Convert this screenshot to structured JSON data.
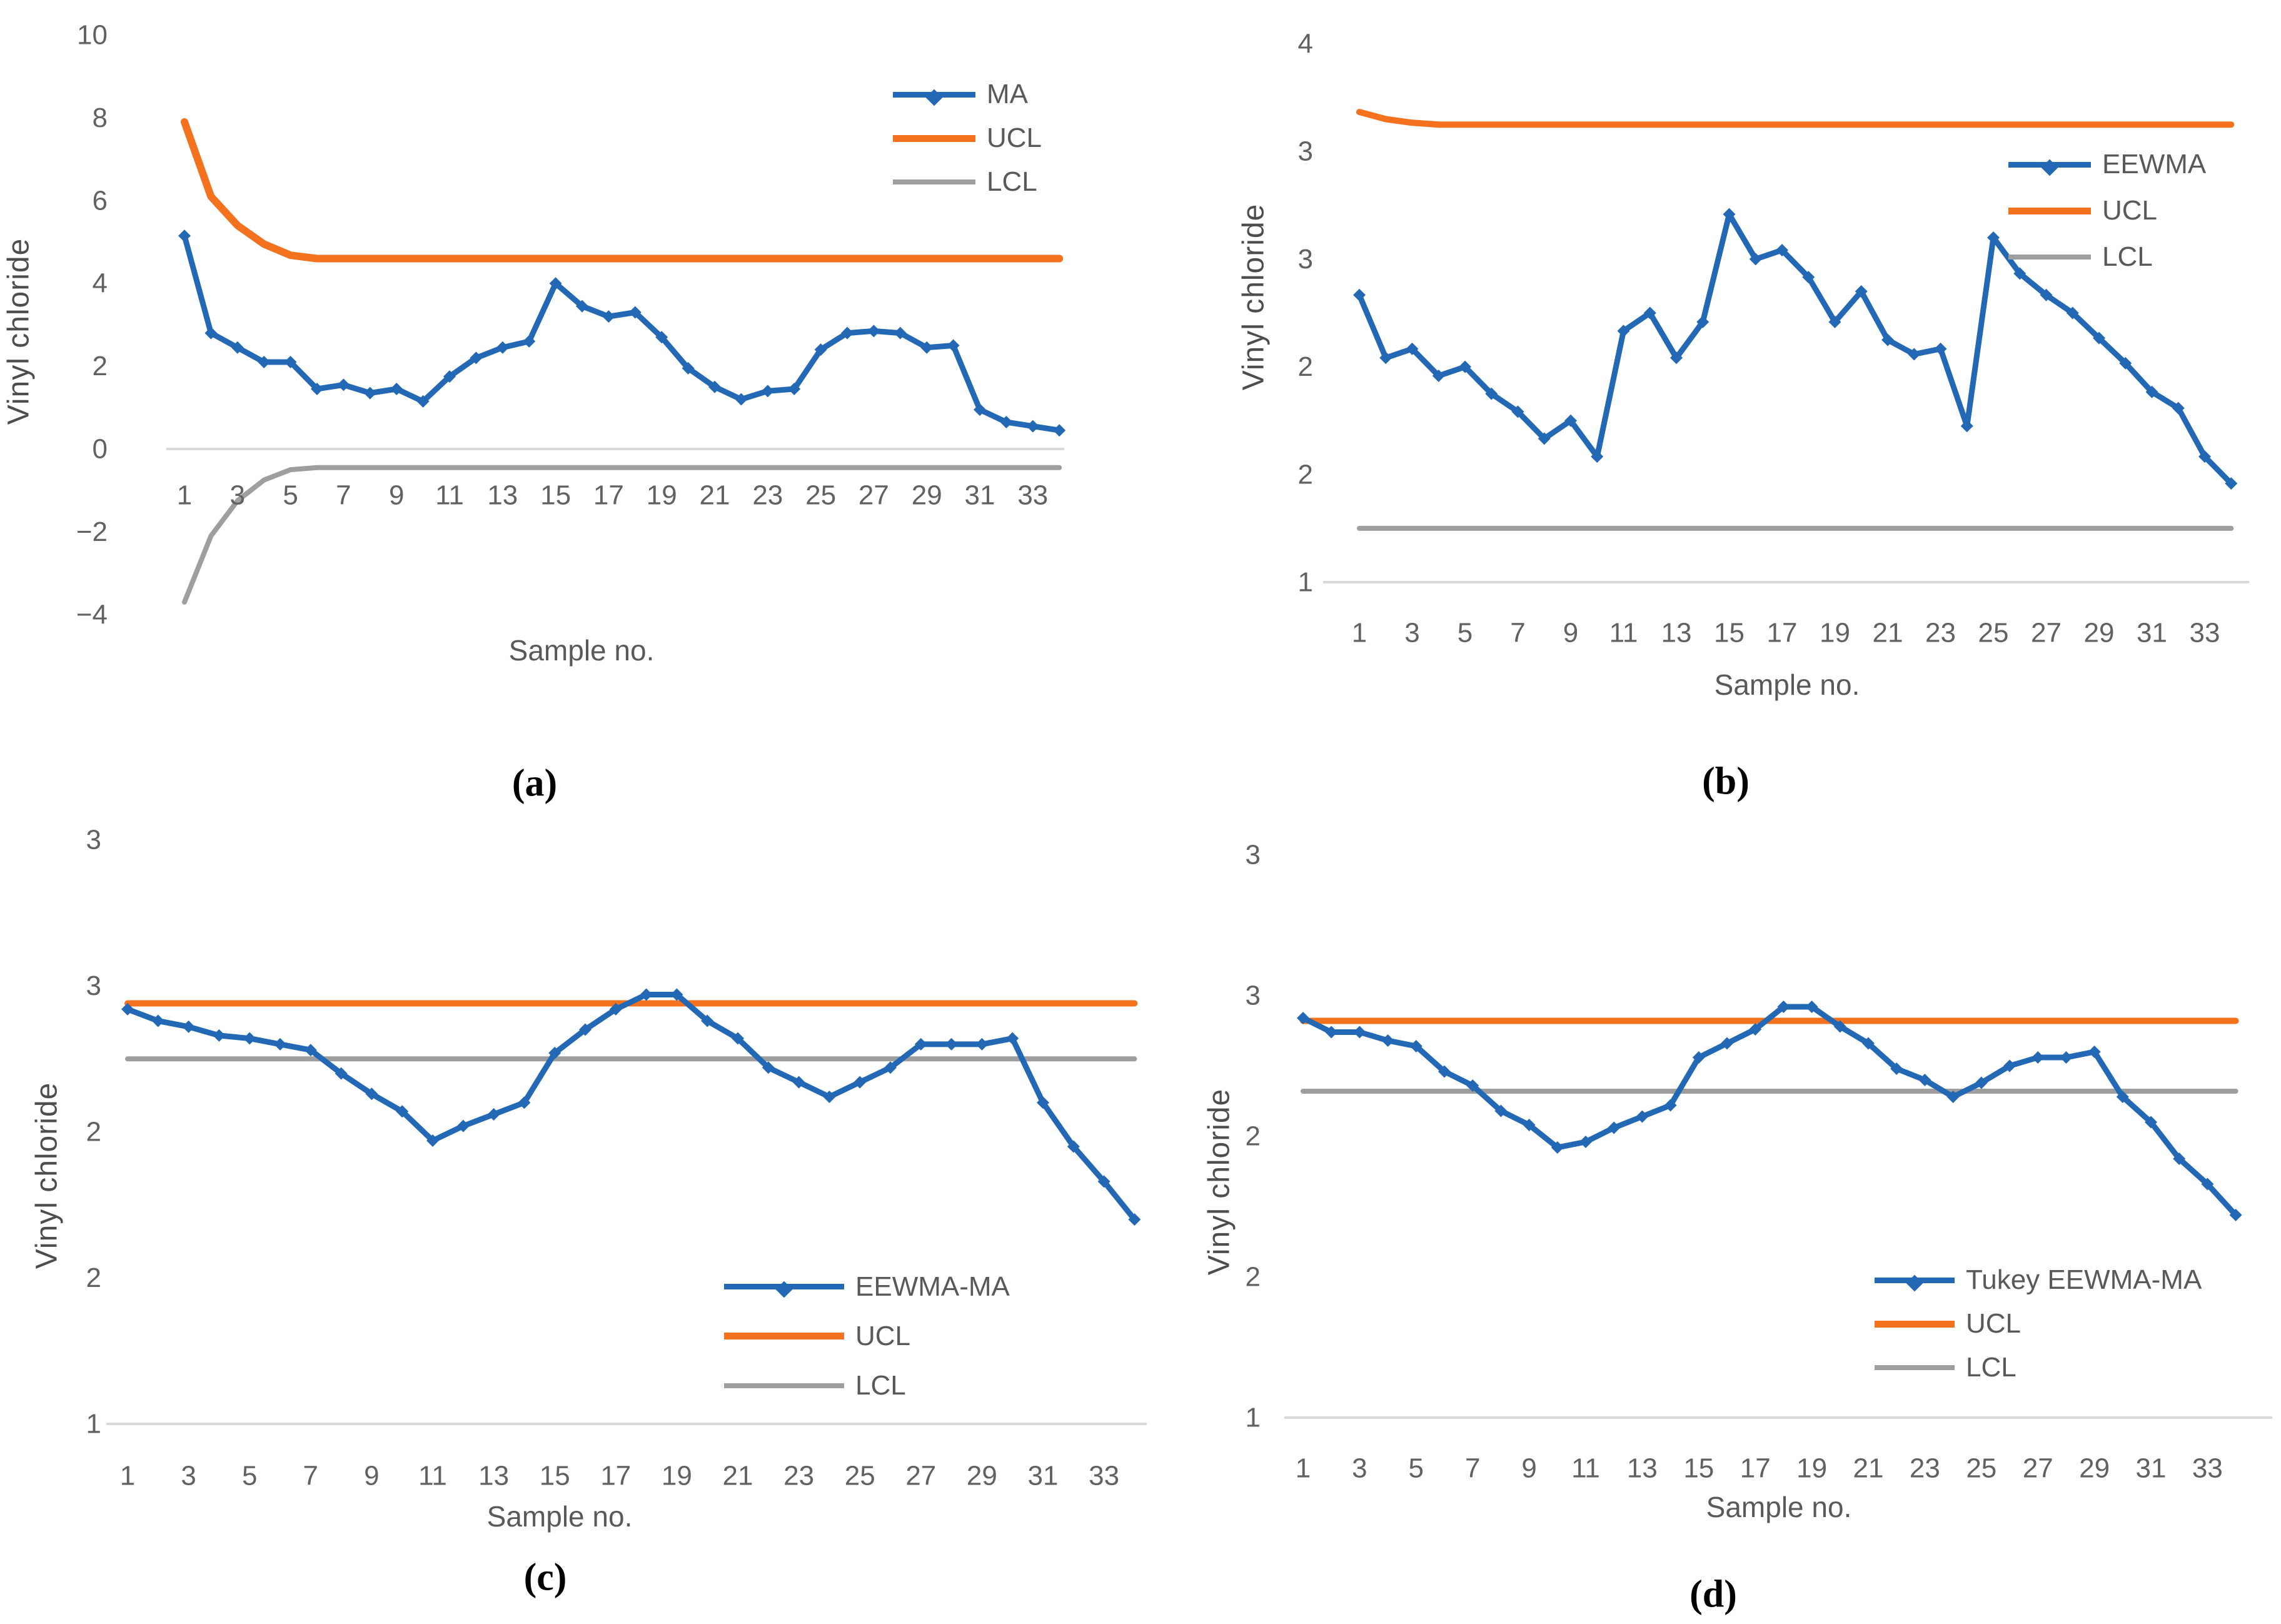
{
  "figure": {
    "type": "control-chart-figure",
    "panel_count": 4,
    "background": "#ffffff"
  },
  "colors": {
    "blue": "#2268b5",
    "orange": "#f4711e",
    "gray": "#9e9e9e",
    "axis_light": "#d8d8d8",
    "tick_text": "#616161",
    "caption_text": "#000000"
  },
  "chart_data": [
    {
      "id": "a",
      "type": "line",
      "caption": "(a)",
      "ylabel": "Vinyl chloride",
      "xlabel": "Sample no.",
      "ylim": [
        -4,
        10
      ],
      "y_major_unit": 2,
      "ytick_values": [
        10,
        8,
        6,
        4,
        2,
        0,
        -2,
        -4
      ],
      "ytick_labels": [
        "10",
        "8",
        "6",
        "4",
        "2",
        "0",
        "−2",
        "−4"
      ],
      "xtick_labels": [
        1,
        3,
        5,
        7,
        9,
        11,
        13,
        15,
        17,
        19,
        21,
        23,
        25,
        27,
        29,
        31,
        33
      ],
      "n_samples": 34,
      "legend_position": "top-right-inside",
      "series": [
        {
          "name": "MA",
          "color_key": "blue",
          "marker": "diamond",
          "values": [
            5.15,
            2.8,
            2.45,
            2.1,
            2.1,
            1.45,
            1.55,
            1.35,
            1.45,
            1.15,
            1.75,
            2.2,
            2.45,
            2.6,
            4.0,
            3.45,
            3.2,
            3.3,
            2.7,
            1.95,
            1.5,
            1.2,
            1.4,
            1.45,
            2.4,
            2.8,
            2.85,
            2.8,
            2.45,
            2.5,
            0.95,
            0.65,
            0.55,
            0.45
          ]
        },
        {
          "name": "UCL",
          "color_key": "orange",
          "marker": "none",
          "values": [
            7.9,
            6.1,
            5.4,
            4.95,
            4.68,
            4.6,
            4.6,
            4.6,
            4.6,
            4.6,
            4.6,
            4.6,
            4.6,
            4.6,
            4.6,
            4.6,
            4.6,
            4.6,
            4.6,
            4.6,
            4.6,
            4.6,
            4.6,
            4.6,
            4.6,
            4.6,
            4.6,
            4.6,
            4.6,
            4.6,
            4.6,
            4.6,
            4.6,
            4.6
          ]
        },
        {
          "name": "LCL",
          "color_key": "gray",
          "marker": "none",
          "values": [
            -3.7,
            -2.1,
            -1.25,
            -0.75,
            -0.5,
            -0.45,
            -0.45,
            -0.45,
            -0.45,
            -0.45,
            -0.45,
            -0.45,
            -0.45,
            -0.45,
            -0.45,
            -0.45,
            -0.45,
            -0.45,
            -0.45,
            -0.45,
            -0.45,
            -0.45,
            -0.45,
            -0.45,
            -0.45,
            -0.45,
            -0.45,
            -0.45,
            -0.45,
            -0.45,
            -0.45,
            -0.45,
            -0.45,
            -0.45
          ]
        }
      ]
    },
    {
      "id": "b",
      "type": "line",
      "caption": "(b)",
      "ylabel": "Vinyl chloride",
      "xlabel": "Sample no.",
      "ylim": [
        1,
        4
      ],
      "y_major_unit": 0.6,
      "ytick_values": [
        4,
        3.4,
        2.8,
        2.2,
        1.6,
        1
      ],
      "ytick_labels": [
        "4",
        "3",
        "3",
        "2",
        "2",
        "1"
      ],
      "xtick_labels": [
        1,
        3,
        5,
        7,
        9,
        11,
        13,
        15,
        17,
        19,
        21,
        23,
        25,
        27,
        29,
        31,
        33
      ],
      "n_samples": 34,
      "legend_position": "top-right-inside",
      "series": [
        {
          "name": "EEWMA",
          "color_key": "blue",
          "marker": "diamond",
          "values": [
            2.6,
            2.25,
            2.3,
            2.15,
            2.2,
            2.05,
            1.95,
            1.8,
            1.9,
            1.7,
            2.4,
            2.5,
            2.25,
            2.45,
            3.05,
            2.8,
            2.85,
            2.7,
            2.45,
            2.62,
            2.35,
            2.27,
            2.3,
            1.87,
            2.92,
            2.72,
            2.6,
            2.5,
            2.36,
            2.22,
            2.06,
            1.97,
            1.7,
            1.55
          ]
        },
        {
          "name": "UCL",
          "color_key": "orange",
          "marker": "none",
          "values": [
            3.62,
            3.58,
            3.56,
            3.55,
            3.55,
            3.55,
            3.55,
            3.55,
            3.55,
            3.55,
            3.55,
            3.55,
            3.55,
            3.55,
            3.55,
            3.55,
            3.55,
            3.55,
            3.55,
            3.55,
            3.55,
            3.55,
            3.55,
            3.55,
            3.55,
            3.55,
            3.55,
            3.55,
            3.55,
            3.55,
            3.55,
            3.55,
            3.55,
            3.55
          ]
        },
        {
          "name": "LCL",
          "color_key": "gray",
          "marker": "none",
          "flat_value": 1.3
        }
      ]
    },
    {
      "id": "c",
      "type": "line",
      "caption": "(c)",
      "ylabel": "Vinyl chloride",
      "xlabel": "Sample no.",
      "ylim": [
        1,
        3
      ],
      "y_major_unit": 0.5,
      "ytick_values": [
        3,
        2.5,
        2,
        1.5,
        1
      ],
      "ytick_labels": [
        "3",
        "3",
        "2",
        "2",
        "1"
      ],
      "xtick_labels": [
        1,
        3,
        5,
        7,
        9,
        11,
        13,
        15,
        17,
        19,
        21,
        23,
        25,
        27,
        29,
        31,
        33
      ],
      "n_samples": 34,
      "legend_position": "bottom-center-inside",
      "series": [
        {
          "name": "EEWMA-MA",
          "color_key": "blue",
          "marker": "diamond",
          "values": [
            2.42,
            2.38,
            2.36,
            2.33,
            2.32,
            2.3,
            2.28,
            2.2,
            2.13,
            2.07,
            1.97,
            2.02,
            2.06,
            2.1,
            2.27,
            2.35,
            2.42,
            2.47,
            2.47,
            2.38,
            2.32,
            2.22,
            2.17,
            2.12,
            2.17,
            2.22,
            2.3,
            2.3,
            2.3,
            2.32,
            2.1,
            1.95,
            1.83,
            1.7
          ]
        },
        {
          "name": "UCL",
          "color_key": "orange",
          "marker": "none",
          "flat_value": 2.44
        },
        {
          "name": "LCL",
          "color_key": "gray",
          "marker": "none",
          "flat_value": 2.25
        }
      ]
    },
    {
      "id": "d",
      "type": "line",
      "caption": "(d)",
      "ylabel": "Vinyl chloride",
      "xlabel": "Sample no.",
      "ylim": [
        1,
        3
      ],
      "y_major_unit": 0.5,
      "ytick_values": [
        3,
        2.5,
        2,
        1.5,
        1
      ],
      "ytick_labels": [
        "3",
        "3",
        "2",
        "2",
        "1"
      ],
      "xtick_labels": [
        1,
        3,
        5,
        7,
        9,
        11,
        13,
        15,
        17,
        19,
        21,
        23,
        25,
        27,
        29,
        31,
        33
      ],
      "n_samples": 34,
      "legend_position": "bottom-right-inside",
      "series": [
        {
          "name": "Tukey EEWMA-MA",
          "color_key": "blue",
          "marker": "diamond",
          "values": [
            2.42,
            2.37,
            2.37,
            2.34,
            2.32,
            2.23,
            2.18,
            2.09,
            2.04,
            1.96,
            1.98,
            2.03,
            2.07,
            2.11,
            2.28,
            2.33,
            2.38,
            2.46,
            2.46,
            2.39,
            2.33,
            2.24,
            2.2,
            2.14,
            2.19,
            2.25,
            2.28,
            2.28,
            2.3,
            2.14,
            2.05,
            1.92,
            1.83,
            1.72
          ]
        },
        {
          "name": "UCL",
          "color_key": "orange",
          "marker": "none",
          "flat_value": 2.41
        },
        {
          "name": "LCL",
          "color_key": "gray",
          "marker": "none",
          "flat_value": 2.16
        }
      ]
    }
  ]
}
